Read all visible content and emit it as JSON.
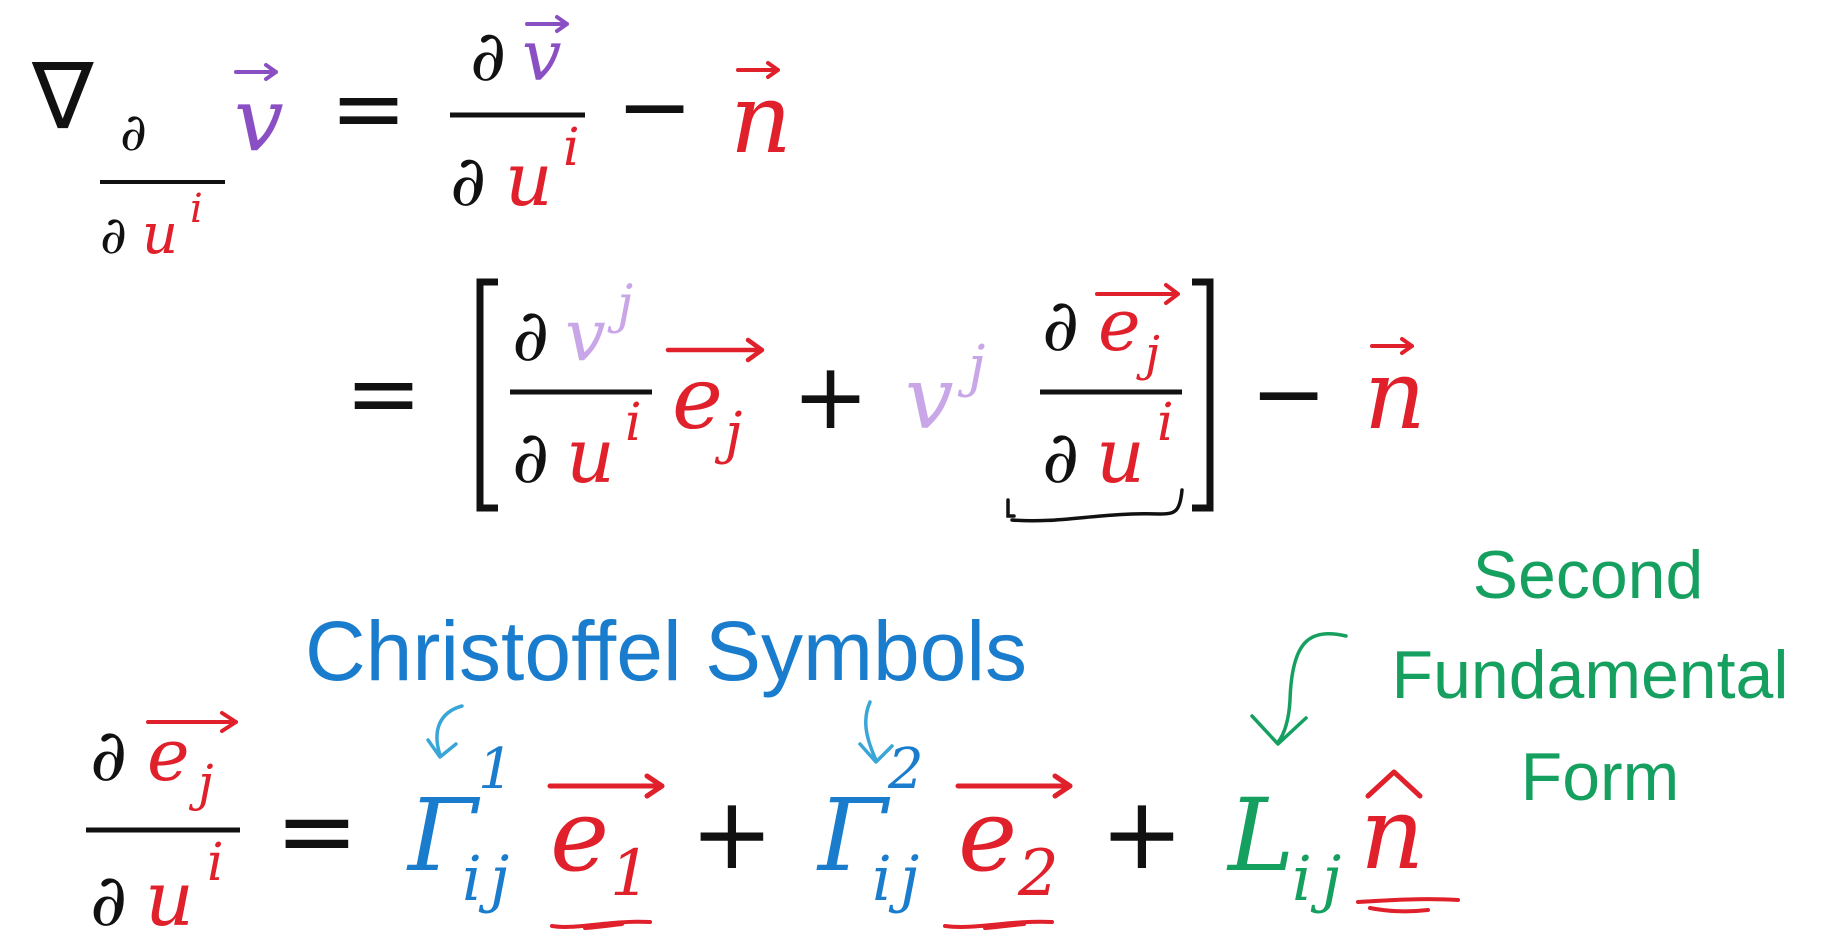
{
  "colors": {
    "black": "#111111",
    "red": "#e0202a",
    "purple": "#8b4fc4",
    "lavender": "#c9a6e8",
    "blue": "#1a7ccc",
    "lightblue": "#3aa6d8",
    "green": "#16a060"
  },
  "symbols": {
    "nabla": "∇",
    "partial": "∂",
    "u": "u",
    "i": "i",
    "j": "j",
    "v": "v",
    "n": "n",
    "e": "e",
    "equals": "=",
    "minus": "−",
    "plus": "+",
    "lbracket": "[",
    "rbracket": "]",
    "Gamma": "Γ",
    "one": "1",
    "two": "2",
    "L": "L",
    "hat": "^"
  },
  "labels": {
    "christoffel": "Christoffel Symbols",
    "second_form_lines": [
      "Second",
      "Fundamental",
      "Form"
    ]
  }
}
